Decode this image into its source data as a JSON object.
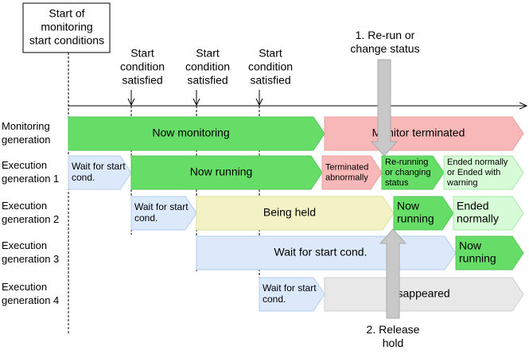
{
  "start_box": [
    "Start of",
    "monitoring",
    "start conditions"
  ],
  "conditions": [
    [
      "Start",
      "condition",
      "satisfied"
    ],
    [
      "Start",
      "condition",
      "satisfied"
    ],
    [
      "Start",
      "condition",
      "satisfied"
    ]
  ],
  "rows": [
    {
      "label": [
        "Monitoring",
        "generation"
      ],
      "segments": [
        {
          "text": [
            "Now monitoring"
          ]
        },
        {
          "text": [
            "Monitor terminated"
          ]
        }
      ]
    },
    {
      "label": [
        "Execution",
        "generation 1"
      ],
      "segments": [
        {
          "text": [
            "Wait for start",
            "cond."
          ]
        },
        {
          "text": [
            "Now running"
          ]
        },
        {
          "text": [
            "Terminated",
            "abnormally"
          ]
        },
        {
          "text": [
            "Re-running",
            "or changing",
            "status"
          ]
        },
        {
          "text": [
            "Ended normally",
            "or Ended with",
            "warning"
          ]
        }
      ]
    },
    {
      "label": [
        "Execution",
        "generation 2"
      ],
      "segments": [
        {
          "text": [
            "Wait for start",
            "cond."
          ]
        },
        {
          "text": [
            "Being held"
          ]
        },
        {
          "text": [
            "Now",
            "running"
          ]
        },
        {
          "text": [
            "Ended",
            "normally"
          ]
        }
      ]
    },
    {
      "label": [
        "Execution",
        "generation 3"
      ],
      "segments": [
        {
          "text": [
            "Wait for start cond."
          ]
        },
        {
          "text": [
            "Now",
            "running"
          ]
        }
      ]
    },
    {
      "label": [
        "Execution",
        "generation 4"
      ],
      "segments": [
        {
          "text": [
            "Wait for start",
            "cond."
          ]
        },
        {
          "text": [
            "Disappeared"
          ]
        }
      ]
    }
  ],
  "callouts": [
    {
      "text": [
        "1. Re-run or",
        "change status"
      ]
    },
    {
      "text": [
        "2. Release",
        "hold"
      ]
    }
  ]
}
